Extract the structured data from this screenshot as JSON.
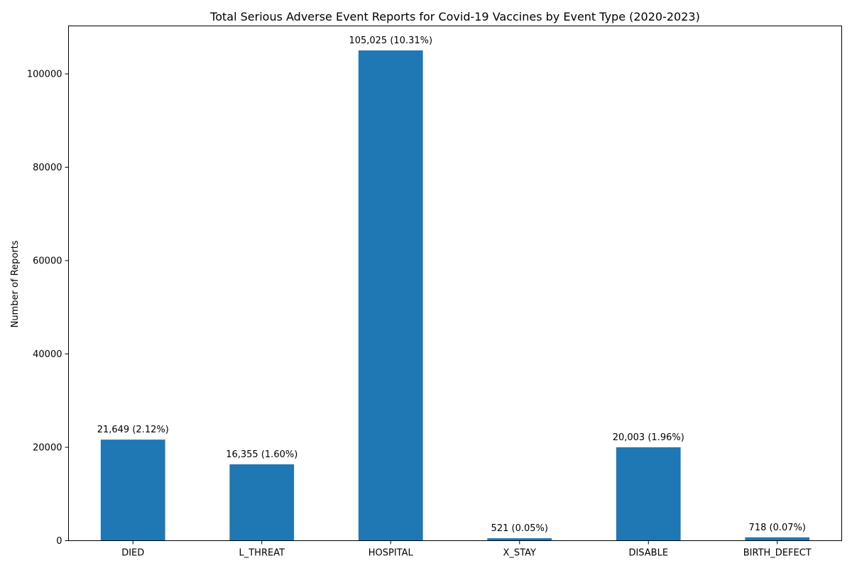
{
  "chart_data": {
    "type": "bar",
    "title": "Total Serious Adverse Event Reports for Covid-19 Vaccines by Event Type (2020-2023)",
    "xlabel": "",
    "ylabel": "Number of Reports",
    "categories": [
      "DIED",
      "L_THREAT",
      "HOSPITAL",
      "X_STAY",
      "DISABLE",
      "BIRTH_DEFECT"
    ],
    "values": [
      21649,
      16355,
      105025,
      521,
      20003,
      718
    ],
    "data_labels": [
      "21,649 (2.12%)",
      "16,355 (1.60%)",
      "105,025 (10.31%)",
      "521 (0.05%)",
      "20,003 (1.96%)",
      "718 (0.07%)"
    ],
    "yticks": [
      0,
      20000,
      40000,
      60000,
      80000,
      100000
    ],
    "ytick_labels": [
      "0",
      "20000",
      "40000",
      "60000",
      "80000",
      "100000"
    ],
    "ylim": [
      0,
      110276
    ],
    "bar_color": "#1f77b4",
    "grid": false,
    "legend": false
  }
}
